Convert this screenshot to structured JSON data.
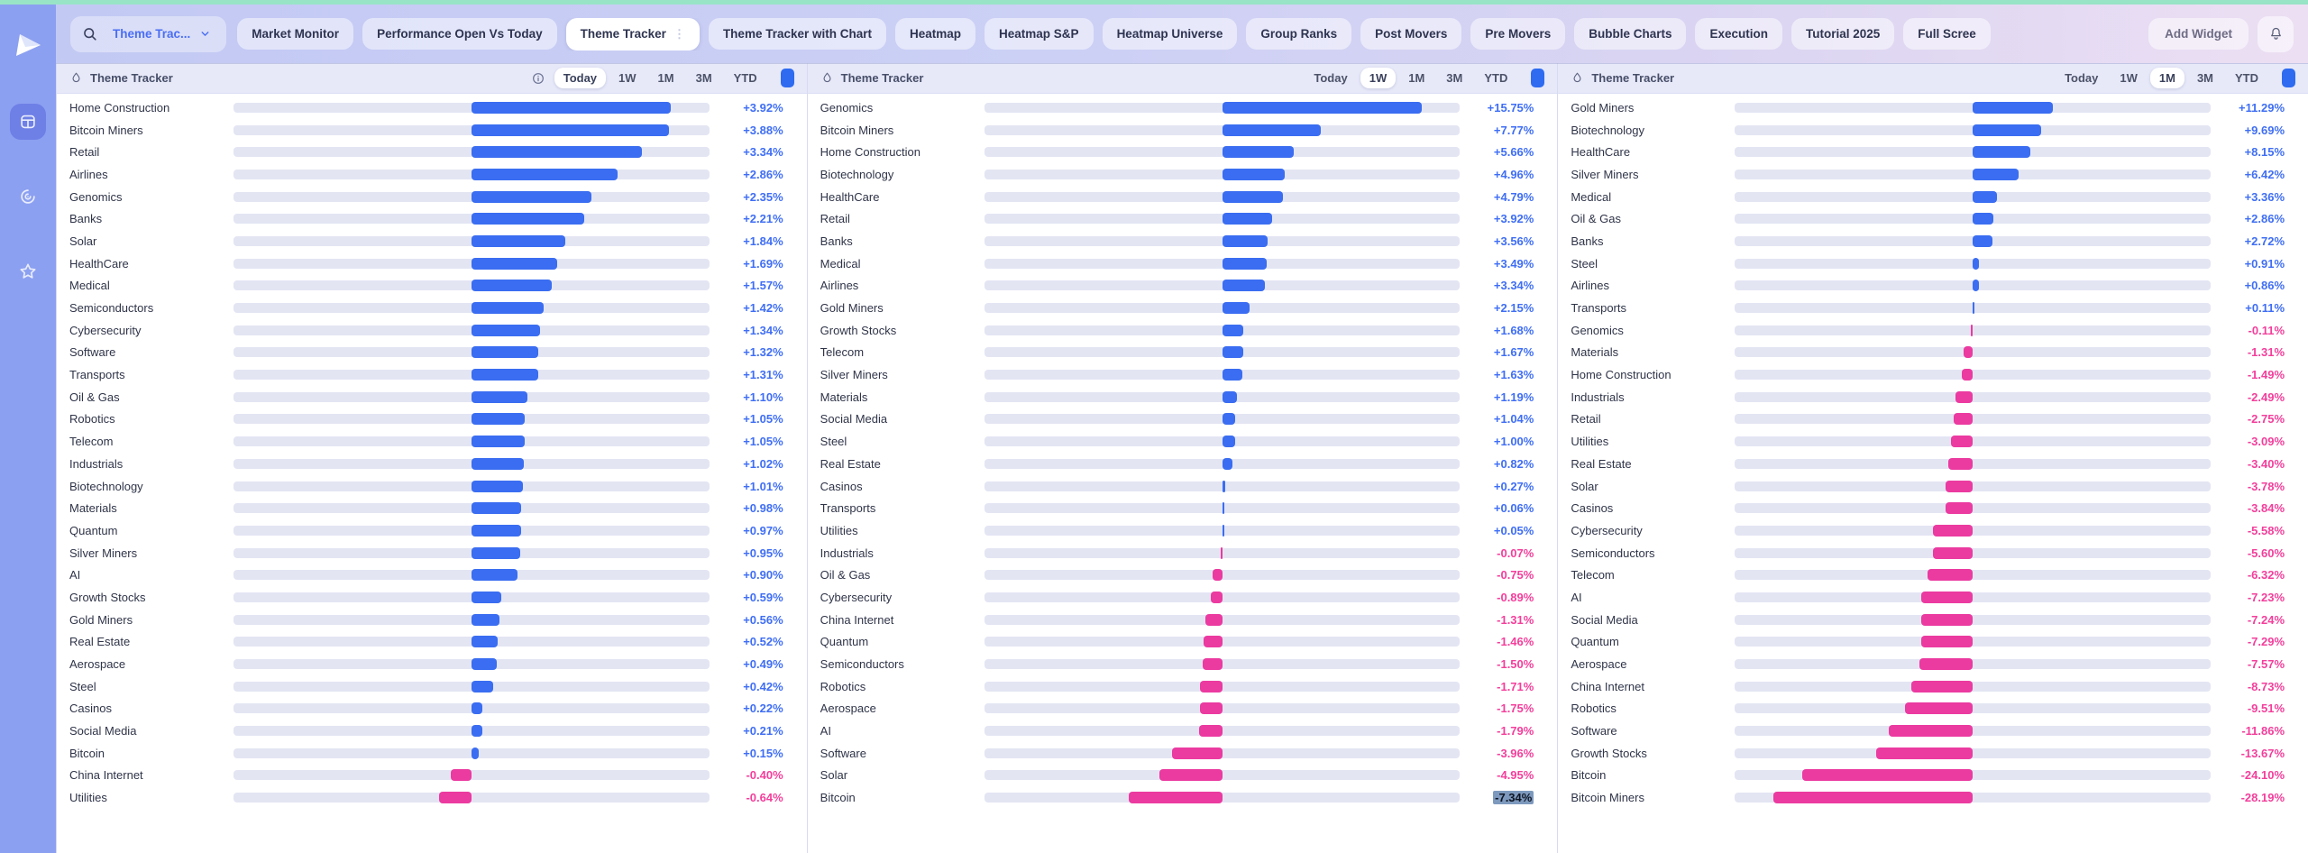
{
  "colors": {
    "accent_blue": "#3a6df1",
    "negative_pink": "#eb3aa0",
    "positive_text": "#3f6ef5",
    "negative_text": "#f43e9b",
    "selection_highlight": "#7d99bd",
    "top_strip_green": "#98e4c6",
    "sidebar_blue": "#8ca0f1",
    "track_gray": "#e3e5f3"
  },
  "sidebar": {
    "logo_icon": "paper-plane-logo",
    "items": [
      {
        "icon": "dashboard-grid-icon",
        "active": true
      },
      {
        "icon": "radar-swirl-icon",
        "active": false
      },
      {
        "icon": "star-icon",
        "active": false
      }
    ]
  },
  "topbar": {
    "search_icon": "search-icon",
    "dropdown": {
      "label": "Theme Trac...",
      "chevron_icon": "chevron-down-icon"
    },
    "tabs": [
      {
        "label": "Market Monitor",
        "selected": false
      },
      {
        "label": "Performance Open Vs Today",
        "selected": false
      },
      {
        "label": "Theme Tracker",
        "selected": true
      },
      {
        "label": "Theme Tracker with Chart",
        "selected": false
      },
      {
        "label": "Heatmap",
        "selected": false
      },
      {
        "label": "Heatmap S&P",
        "selected": false
      },
      {
        "label": "Heatmap Universe",
        "selected": false
      },
      {
        "label": "Group Ranks",
        "selected": false
      },
      {
        "label": "Post Movers",
        "selected": false
      },
      {
        "label": "Pre Movers",
        "selected": false
      },
      {
        "label": "Bubble Charts",
        "selected": false
      },
      {
        "label": "Execution",
        "selected": false
      },
      {
        "label": "Tutorial 2025",
        "selected": false
      },
      {
        "label": "Full Scree",
        "selected": false
      }
    ],
    "add_widget_label": "Add Widget",
    "bell_icon": "bell-icon"
  },
  "panels": [
    {
      "title": "Theme Tracker",
      "info_icon": true,
      "timeframes": [
        "Today",
        "1W",
        "1M",
        "3M",
        "YTD"
      ],
      "active_timeframe": "Today",
      "rows": [
        {
          "name": "Home Construction",
          "value": "+3.92%",
          "pct": 3.92
        },
        {
          "name": "Bitcoin Miners",
          "value": "+3.88%",
          "pct": 3.88
        },
        {
          "name": "Retail",
          "value": "+3.34%",
          "pct": 3.34
        },
        {
          "name": "Airlines",
          "value": "+2.86%",
          "pct": 2.86
        },
        {
          "name": "Genomics",
          "value": "+2.35%",
          "pct": 2.35
        },
        {
          "name": "Banks",
          "value": "+2.21%",
          "pct": 2.21
        },
        {
          "name": "Solar",
          "value": "+1.84%",
          "pct": 1.84
        },
        {
          "name": "HealthCare",
          "value": "+1.69%",
          "pct": 1.69
        },
        {
          "name": "Medical",
          "value": "+1.57%",
          "pct": 1.57
        },
        {
          "name": "Semiconductors",
          "value": "+1.42%",
          "pct": 1.42
        },
        {
          "name": "Cybersecurity",
          "value": "+1.34%",
          "pct": 1.34
        },
        {
          "name": "Software",
          "value": "+1.32%",
          "pct": 1.32
        },
        {
          "name": "Transports",
          "value": "+1.31%",
          "pct": 1.31
        },
        {
          "name": "Oil & Gas",
          "value": "+1.10%",
          "pct": 1.1
        },
        {
          "name": "Robotics",
          "value": "+1.05%",
          "pct": 1.05
        },
        {
          "name": "Telecom",
          "value": "+1.05%",
          "pct": 1.05
        },
        {
          "name": "Industrials",
          "value": "+1.02%",
          "pct": 1.02
        },
        {
          "name": "Biotechnology",
          "value": "+1.01%",
          "pct": 1.01
        },
        {
          "name": "Materials",
          "value": "+0.98%",
          "pct": 0.98
        },
        {
          "name": "Quantum",
          "value": "+0.97%",
          "pct": 0.97
        },
        {
          "name": "Silver Miners",
          "value": "+0.95%",
          "pct": 0.95
        },
        {
          "name": "AI",
          "value": "+0.90%",
          "pct": 0.9
        },
        {
          "name": "Growth Stocks",
          "value": "+0.59%",
          "pct": 0.59
        },
        {
          "name": "Gold Miners",
          "value": "+0.56%",
          "pct": 0.56
        },
        {
          "name": "Real Estate",
          "value": "+0.52%",
          "pct": 0.52
        },
        {
          "name": "Aerospace",
          "value": "+0.49%",
          "pct": 0.49
        },
        {
          "name": "Steel",
          "value": "+0.42%",
          "pct": 0.42
        },
        {
          "name": "Casinos",
          "value": "+0.22%",
          "pct": 0.22
        },
        {
          "name": "Social Media",
          "value": "+0.21%",
          "pct": 0.21
        },
        {
          "name": "Bitcoin",
          "value": "+0.15%",
          "pct": 0.15
        },
        {
          "name": "China Internet",
          "value": "-0.40%",
          "pct": -0.4
        },
        {
          "name": "Utilities",
          "value": "-0.64%",
          "pct": -0.64
        }
      ]
    },
    {
      "title": "Theme Tracker",
      "info_icon": false,
      "timeframes": [
        "Today",
        "1W",
        "1M",
        "3M",
        "YTD"
      ],
      "active_timeframe": "1W",
      "rows": [
        {
          "name": "Genomics",
          "value": "+15.75%",
          "pct": 15.75
        },
        {
          "name": "Bitcoin Miners",
          "value": "+7.77%",
          "pct": 7.77
        },
        {
          "name": "Home Construction",
          "value": "+5.66%",
          "pct": 5.66
        },
        {
          "name": "Biotechnology",
          "value": "+4.96%",
          "pct": 4.96
        },
        {
          "name": "HealthCare",
          "value": "+4.79%",
          "pct": 4.79
        },
        {
          "name": "Retail",
          "value": "+3.92%",
          "pct": 3.92
        },
        {
          "name": "Banks",
          "value": "+3.56%",
          "pct": 3.56
        },
        {
          "name": "Medical",
          "value": "+3.49%",
          "pct": 3.49
        },
        {
          "name": "Airlines",
          "value": "+3.34%",
          "pct": 3.34
        },
        {
          "name": "Gold Miners",
          "value": "+2.15%",
          "pct": 2.15
        },
        {
          "name": "Growth Stocks",
          "value": "+1.68%",
          "pct": 1.68
        },
        {
          "name": "Telecom",
          "value": "+1.67%",
          "pct": 1.67
        },
        {
          "name": "Silver Miners",
          "value": "+1.63%",
          "pct": 1.63
        },
        {
          "name": "Materials",
          "value": "+1.19%",
          "pct": 1.19
        },
        {
          "name": "Social Media",
          "value": "+1.04%",
          "pct": 1.04
        },
        {
          "name": "Steel",
          "value": "+1.00%",
          "pct": 1.0
        },
        {
          "name": "Real Estate",
          "value": "+0.82%",
          "pct": 0.82
        },
        {
          "name": "Casinos",
          "value": "+0.27%",
          "pct": 0.27
        },
        {
          "name": "Transports",
          "value": "+0.06%",
          "pct": 0.06
        },
        {
          "name": "Utilities",
          "value": "+0.05%",
          "pct": 0.05
        },
        {
          "name": "Industrials",
          "value": "-0.07%",
          "pct": -0.07
        },
        {
          "name": "Oil & Gas",
          "value": "-0.75%",
          "pct": -0.75
        },
        {
          "name": "Cybersecurity",
          "value": "-0.89%",
          "pct": -0.89
        },
        {
          "name": "China Internet",
          "value": "-1.31%",
          "pct": -1.31
        },
        {
          "name": "Quantum",
          "value": "-1.46%",
          "pct": -1.46
        },
        {
          "name": "Semiconductors",
          "value": "-1.50%",
          "pct": -1.5
        },
        {
          "name": "Robotics",
          "value": "-1.71%",
          "pct": -1.71
        },
        {
          "name": "Aerospace",
          "value": "-1.75%",
          "pct": -1.75
        },
        {
          "name": "AI",
          "value": "-1.79%",
          "pct": -1.79
        },
        {
          "name": "Software",
          "value": "-3.96%",
          "pct": -3.96
        },
        {
          "name": "Solar",
          "value": "-4.95%",
          "pct": -4.95
        },
        {
          "name": "Bitcoin",
          "value": "-7.34%",
          "pct": -7.34,
          "highlight": true
        }
      ]
    },
    {
      "title": "Theme Tracker",
      "info_icon": false,
      "timeframes": [
        "Today",
        "1W",
        "1M",
        "3M",
        "YTD"
      ],
      "active_timeframe": "1M",
      "rows": [
        {
          "name": "Gold Miners",
          "value": "+11.29%",
          "pct": 11.29
        },
        {
          "name": "Biotechnology",
          "value": "+9.69%",
          "pct": 9.69
        },
        {
          "name": "HealthCare",
          "value": "+8.15%",
          "pct": 8.15
        },
        {
          "name": "Silver Miners",
          "value": "+6.42%",
          "pct": 6.42
        },
        {
          "name": "Medical",
          "value": "+3.36%",
          "pct": 3.36
        },
        {
          "name": "Oil & Gas",
          "value": "+2.86%",
          "pct": 2.86
        },
        {
          "name": "Banks",
          "value": "+2.72%",
          "pct": 2.72
        },
        {
          "name": "Steel",
          "value": "+0.91%",
          "pct": 0.91
        },
        {
          "name": "Airlines",
          "value": "+0.86%",
          "pct": 0.86
        },
        {
          "name": "Transports",
          "value": "+0.11%",
          "pct": 0.11
        },
        {
          "name": "Genomics",
          "value": "-0.11%",
          "pct": -0.11
        },
        {
          "name": "Materials",
          "value": "-1.31%",
          "pct": -1.31
        },
        {
          "name": "Home Construction",
          "value": "-1.49%",
          "pct": -1.49
        },
        {
          "name": "Industrials",
          "value": "-2.49%",
          "pct": -2.49
        },
        {
          "name": "Retail",
          "value": "-2.75%",
          "pct": -2.75
        },
        {
          "name": "Utilities",
          "value": "-3.09%",
          "pct": -3.09
        },
        {
          "name": "Real Estate",
          "value": "-3.40%",
          "pct": -3.4
        },
        {
          "name": "Solar",
          "value": "-3.78%",
          "pct": -3.78
        },
        {
          "name": "Casinos",
          "value": "-3.84%",
          "pct": -3.84
        },
        {
          "name": "Cybersecurity",
          "value": "-5.58%",
          "pct": -5.58
        },
        {
          "name": "Semiconductors",
          "value": "-5.60%",
          "pct": -5.6
        },
        {
          "name": "Telecom",
          "value": "-6.32%",
          "pct": -6.32
        },
        {
          "name": "AI",
          "value": "-7.23%",
          "pct": -7.23
        },
        {
          "name": "Social Media",
          "value": "-7.24%",
          "pct": -7.24
        },
        {
          "name": "Quantum",
          "value": "-7.29%",
          "pct": -7.29
        },
        {
          "name": "Aerospace",
          "value": "-7.57%",
          "pct": -7.57
        },
        {
          "name": "China Internet",
          "value": "-8.73%",
          "pct": -8.73
        },
        {
          "name": "Robotics",
          "value": "-9.51%",
          "pct": -9.51
        },
        {
          "name": "Software",
          "value": "-11.86%",
          "pct": -11.86
        },
        {
          "name": "Growth Stocks",
          "value": "-13.67%",
          "pct": -13.67
        },
        {
          "name": "Bitcoin",
          "value": "-24.10%",
          "pct": -24.1
        },
        {
          "name": "Bitcoin Miners",
          "value": "-28.19%",
          "pct": -28.19
        }
      ]
    }
  ]
}
